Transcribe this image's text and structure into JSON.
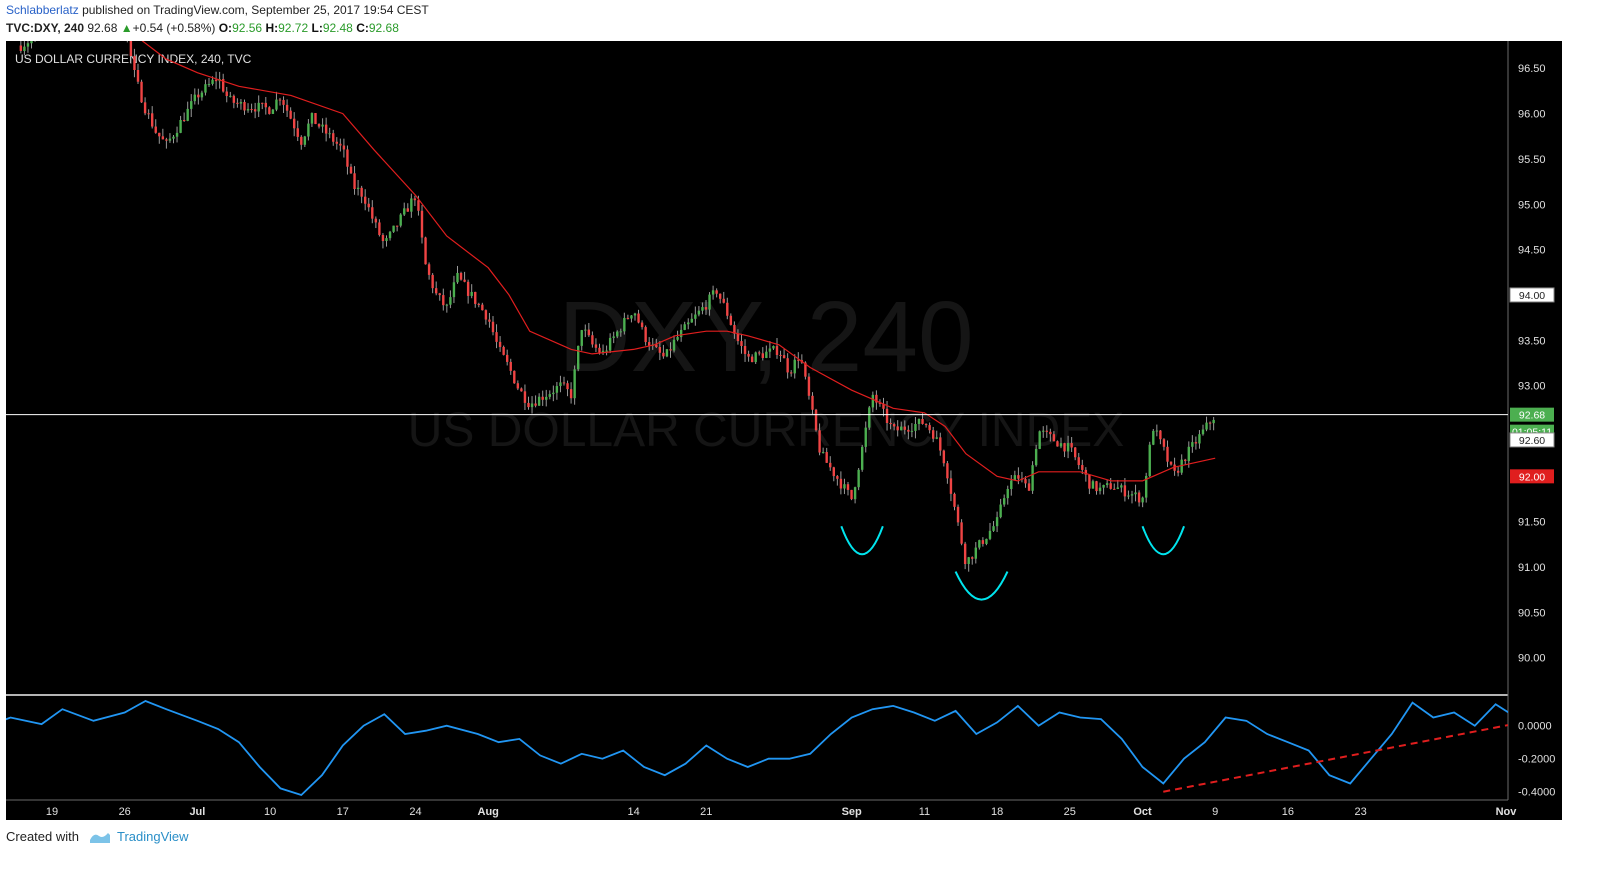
{
  "header": {
    "author": "Schlabberlatz",
    "published": "published on TradingView.com, September 25, 2017 19:54 CEST",
    "symbol": "TVC:DXY, 240",
    "last": "92.68",
    "change_arrow": "▲",
    "change": "+0.54 (+0.58%)",
    "o_label": "O:",
    "o": "92.56",
    "h_label": "H:",
    "h": "92.72",
    "l_label": "L:",
    "l": "92.48",
    "c_label": "C:",
    "c": "92.68"
  },
  "chart_data": {
    "type": "candlestick",
    "title": "US DOLLAR CURRENCY INDEX, 240, TVC",
    "watermark_symbol": "DXY, 240",
    "watermark_name": "US DOLLAR CURRENCY INDEX",
    "colors": {
      "background": "#000000",
      "up": "#4caf50",
      "down": "#ef4444",
      "ma": "#e01e1e",
      "oscillator": "#2196f3",
      "patterns": "#00e5ee",
      "trendline": "#e01e1e"
    },
    "price_axis": {
      "range": [
        89.6,
        96.8
      ],
      "ticks": [
        "96.50",
        "96.00",
        "95.50",
        "95.00",
        "94.50",
        "94.00",
        "93.50",
        "93.00",
        "92.50",
        "92.00",
        "91.50",
        "91.00",
        "90.50",
        "90.00"
      ]
    },
    "price_labels": {
      "last": "92.68",
      "countdown": "01:05:11",
      "level_a": "92.60",
      "ma_value": "92.00",
      "level_b": "94.00"
    },
    "x_axis": {
      "ticks": [
        "19",
        "26",
        "Jul",
        "10",
        "17",
        "24",
        "Aug",
        "14",
        "21",
        "Sep",
        "11",
        "18",
        "25",
        "Oct",
        "9",
        "16",
        "23",
        "Nov"
      ]
    },
    "price_path": [
      [
        "2017-06-16",
        96.75
      ],
      [
        "2017-06-19",
        96.95
      ],
      [
        "2017-06-21",
        96.95
      ],
      [
        "2017-06-23",
        96.95
      ],
      [
        "2017-06-26",
        96.95
      ],
      [
        "2017-06-27",
        96.4
      ],
      [
        "2017-06-28",
        96.05
      ],
      [
        "2017-06-29",
        95.8
      ],
      [
        "2017-06-30",
        95.65
      ],
      [
        "2017-07-03",
        96.2
      ],
      [
        "2017-07-05",
        96.4
      ],
      [
        "2017-07-06",
        96.15
      ],
      [
        "2017-07-07",
        96.1
      ],
      [
        "2017-07-10",
        96.05
      ],
      [
        "2017-07-11",
        96.2
      ],
      [
        "2017-07-12",
        95.95
      ],
      [
        "2017-07-13",
        95.7
      ],
      [
        "2017-07-14",
        95.95
      ],
      [
        "2017-07-17",
        95.6
      ],
      [
        "2017-07-18",
        95.2
      ],
      [
        "2017-07-19",
        95.1
      ],
      [
        "2017-07-20",
        94.8
      ],
      [
        "2017-07-21",
        94.55
      ],
      [
        "2017-07-24",
        95.1
      ],
      [
        "2017-07-25",
        94.3
      ],
      [
        "2017-07-26",
        94.0
      ],
      [
        "2017-07-27",
        93.85
      ],
      [
        "2017-07-28",
        94.2
      ],
      [
        "2017-07-31",
        93.75
      ],
      [
        "2017-08-01",
        93.4
      ],
      [
        "2017-08-02",
        93.2
      ],
      [
        "2017-08-03",
        92.95
      ],
      [
        "2017-08-04",
        92.8
      ],
      [
        "2017-08-07",
        93.0
      ],
      [
        "2017-08-08",
        92.9
      ],
      [
        "2017-08-09",
        93.65
      ],
      [
        "2017-08-10",
        93.45
      ],
      [
        "2017-08-11",
        93.35
      ],
      [
        "2017-08-14",
        93.85
      ],
      [
        "2017-08-15",
        93.55
      ],
      [
        "2017-08-16",
        93.4
      ],
      [
        "2017-08-17",
        93.3
      ],
      [
        "2017-08-18",
        93.5
      ],
      [
        "2017-08-21",
        93.9
      ],
      [
        "2017-08-22",
        94.05
      ],
      [
        "2017-08-23",
        93.8
      ],
      [
        "2017-08-24",
        93.5
      ],
      [
        "2017-08-25",
        93.3
      ],
      [
        "2017-08-28",
        93.4
      ],
      [
        "2017-08-29",
        93.15
      ],
      [
        "2017-08-30",
        93.35
      ],
      [
        "2017-08-31",
        92.8
      ],
      [
        "2017-09-01",
        92.25
      ],
      [
        "2017-09-04",
        91.75
      ],
      [
        "2017-09-05",
        92.3
      ],
      [
        "2017-09-06",
        92.9
      ],
      [
        "2017-09-07",
        92.7
      ],
      [
        "2017-09-08",
        92.5
      ],
      [
        "2017-09-11",
        92.6
      ],
      [
        "2017-09-12",
        92.45
      ],
      [
        "2017-09-13",
        92.15
      ],
      [
        "2017-09-14",
        91.6
      ],
      [
        "2017-09-15",
        91.05
      ],
      [
        "2017-09-18",
        91.5
      ],
      [
        "2017-09-19",
        91.9
      ],
      [
        "2017-09-20",
        92.0
      ],
      [
        "2017-09-21",
        91.85
      ],
      [
        "2017-09-22",
        92.5
      ],
      [
        "2017-09-25",
        92.3
      ],
      [
        "2017-09-26",
        92.1
      ],
      [
        "2017-09-27",
        91.9
      ],
      [
        "2017-09-28",
        91.85
      ],
      [
        "2017-09-29",
        91.9
      ],
      [
        "2017-10-02",
        91.75
      ],
      [
        "2017-10-03",
        92.55
      ],
      [
        "2017-10-04",
        92.3
      ],
      [
        "2017-10-05",
        92.0
      ],
      [
        "2017-10-06",
        92.2
      ],
      [
        "2017-10-09",
        92.68
      ]
    ],
    "ma_path": [
      [
        "2017-06-26",
        96.95
      ],
      [
        "2017-06-30",
        96.6
      ],
      [
        "2017-07-03",
        96.45
      ],
      [
        "2017-07-07",
        96.3
      ],
      [
        "2017-07-12",
        96.2
      ],
      [
        "2017-07-17",
        96.0
      ],
      [
        "2017-07-20",
        95.6
      ],
      [
        "2017-07-24",
        95.1
      ],
      [
        "2017-07-27",
        94.65
      ],
      [
        "2017-07-31",
        94.3
      ],
      [
        "2017-08-02",
        94.0
      ],
      [
        "2017-08-04",
        93.6
      ],
      [
        "2017-08-08",
        93.4
      ],
      [
        "2017-08-10",
        93.35
      ],
      [
        "2017-08-14",
        93.4
      ],
      [
        "2017-08-16",
        93.45
      ],
      [
        "2017-08-18",
        93.55
      ],
      [
        "2017-08-21",
        93.6
      ],
      [
        "2017-08-23",
        93.6
      ],
      [
        "2017-08-25",
        93.55
      ],
      [
        "2017-08-28",
        93.45
      ],
      [
        "2017-08-31",
        93.2
      ],
      [
        "2017-09-04",
        92.95
      ],
      [
        "2017-09-06",
        92.85
      ],
      [
        "2017-09-08",
        92.75
      ],
      [
        "2017-09-11",
        92.7
      ],
      [
        "2017-09-13",
        92.55
      ],
      [
        "2017-09-15",
        92.25
      ],
      [
        "2017-09-18",
        92.0
      ],
      [
        "2017-09-20",
        91.95
      ],
      [
        "2017-09-22",
        92.05
      ],
      [
        "2017-09-26",
        92.05
      ],
      [
        "2017-09-29",
        91.95
      ],
      [
        "2017-10-02",
        91.95
      ],
      [
        "2017-10-05",
        92.1
      ],
      [
        "2017-10-09",
        92.2
      ]
    ],
    "oscillator": {
      "ticks": [
        "0.0000",
        "-0.2000",
        "-0.4000"
      ],
      "range": [
        -0.45,
        0.18
      ],
      "path": [
        [
          "2017-06-13",
          0.0
        ],
        [
          "2017-06-15",
          0.05
        ],
        [
          "2017-06-18",
          0.01
        ],
        [
          "2017-06-20",
          0.1
        ],
        [
          "2017-06-23",
          0.03
        ],
        [
          "2017-06-26",
          0.08
        ],
        [
          "2017-06-28",
          0.15
        ],
        [
          "2017-06-30",
          0.1
        ],
        [
          "2017-07-03",
          0.03
        ],
        [
          "2017-07-05",
          -0.02
        ],
        [
          "2017-07-07",
          -0.1
        ],
        [
          "2017-07-09",
          -0.25
        ],
        [
          "2017-07-11",
          -0.38
        ],
        [
          "2017-07-13",
          -0.42
        ],
        [
          "2017-07-15",
          -0.3
        ],
        [
          "2017-07-17",
          -0.12
        ],
        [
          "2017-07-19",
          0.0
        ],
        [
          "2017-07-21",
          0.07
        ],
        [
          "2017-07-23",
          -0.05
        ],
        [
          "2017-07-25",
          -0.03
        ],
        [
          "2017-07-27",
          0.0
        ],
        [
          "2017-07-30",
          -0.05
        ],
        [
          "2017-08-01",
          -0.1
        ],
        [
          "2017-08-03",
          -0.08
        ],
        [
          "2017-08-05",
          -0.18
        ],
        [
          "2017-08-07",
          -0.23
        ],
        [
          "2017-08-09",
          -0.17
        ],
        [
          "2017-08-11",
          -0.2
        ],
        [
          "2017-08-13",
          -0.15
        ],
        [
          "2017-08-15",
          -0.25
        ],
        [
          "2017-08-17",
          -0.3
        ],
        [
          "2017-08-19",
          -0.23
        ],
        [
          "2017-08-21",
          -0.12
        ],
        [
          "2017-08-23",
          -0.2
        ],
        [
          "2017-08-25",
          -0.25
        ],
        [
          "2017-08-27",
          -0.2
        ],
        [
          "2017-08-29",
          -0.2
        ],
        [
          "2017-08-31",
          -0.17
        ],
        [
          "2017-09-02",
          -0.05
        ],
        [
          "2017-09-04",
          0.05
        ],
        [
          "2017-09-06",
          0.1
        ],
        [
          "2017-09-08",
          0.12
        ],
        [
          "2017-09-10",
          0.08
        ],
        [
          "2017-09-12",
          0.03
        ],
        [
          "2017-09-14",
          0.09
        ],
        [
          "2017-09-16",
          -0.05
        ],
        [
          "2017-09-18",
          0.02
        ],
        [
          "2017-09-20",
          0.12
        ],
        [
          "2017-09-22",
          0.0
        ],
        [
          "2017-09-24",
          0.08
        ],
        [
          "2017-09-26",
          0.05
        ],
        [
          "2017-09-28",
          0.04
        ],
        [
          "2017-09-30",
          -0.08
        ],
        [
          "2017-10-02",
          -0.25
        ],
        [
          "2017-10-04",
          -0.35
        ],
        [
          "2017-10-06",
          -0.2
        ],
        [
          "2017-10-08",
          -0.1
        ],
        [
          "2017-10-10",
          0.05
        ],
        [
          "2017-10-12",
          0.03
        ],
        [
          "2017-10-14",
          -0.05
        ],
        [
          "2017-10-16",
          -0.1
        ],
        [
          "2017-10-18",
          -0.15
        ],
        [
          "2017-10-20",
          -0.3
        ],
        [
          "2017-10-22",
          -0.35
        ],
        [
          "2017-10-24",
          -0.2
        ],
        [
          "2017-10-26",
          -0.05
        ],
        [
          "2017-10-28",
          0.14
        ],
        [
          "2017-10-30",
          0.05
        ],
        [
          "2017-11-01",
          0.08
        ],
        [
          "2017-11-03",
          0.0
        ],
        [
          "2017-11-05",
          0.13
        ],
        [
          "2017-11-07",
          0.05
        ],
        [
          "2017-11-08",
          0.12
        ]
      ],
      "trendline": [
        [
          "2017-10-04",
          -0.4
        ],
        [
          "2017-11-10",
          0.05
        ]
      ]
    },
    "patterns": [
      {
        "name": "left shoulder",
        "start": "2017-09-03",
        "end": "2017-09-07",
        "level": 91.45
      },
      {
        "name": "head",
        "start": "2017-09-14",
        "end": "2017-09-19",
        "level": 90.95
      },
      {
        "name": "right shoulder",
        "start": "2017-10-02",
        "end": "2017-10-06",
        "level": 91.45
      }
    ]
  },
  "footer": {
    "created_with": "Created with",
    "brand": "TradingView"
  }
}
